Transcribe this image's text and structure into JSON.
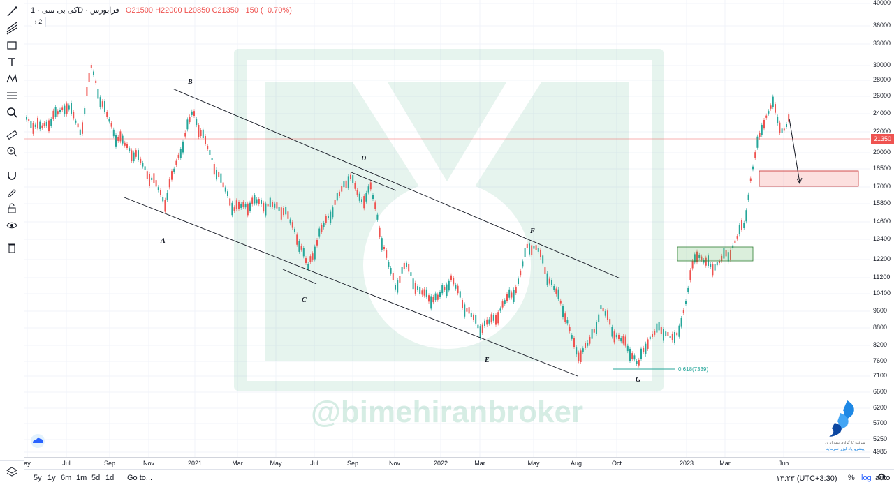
{
  "symbol": {
    "name": "قرابورس",
    "timeframe": "1D",
    "exchange": "کی بی سی",
    "open_label": "O",
    "open": "21500",
    "high_label": "H",
    "high": "22000",
    "low_label": "L",
    "low": "20850",
    "close_label": "C",
    "close": "21350",
    "change": "−150 (−0.70%)",
    "collapsed_count": "2"
  },
  "price_axis": {
    "ticks": [
      "40000",
      "36000",
      "33000",
      "30000",
      "28000",
      "26000",
      "24000",
      "22000",
      "20000",
      "18500",
      "17000",
      "15800",
      "14600",
      "13400",
      "12200",
      "11200",
      "10400",
      "9600",
      "8800",
      "8200",
      "7600",
      "7100",
      "6600",
      "6200",
      "5700",
      "5250",
      "4985"
    ],
    "current_price": "21350"
  },
  "time_axis": {
    "labels": [
      "ay",
      "Jul",
      "Sep",
      "Nov",
      "2021",
      "Mar",
      "May",
      "Jul",
      "Sep",
      "Nov",
      "2022",
      "Mar",
      "May",
      "Jun",
      "Aug",
      "Oct",
      "2023",
      "Mar",
      "Jun"
    ]
  },
  "annotations": {
    "points": [
      "A",
      "B",
      "C",
      "D",
      "E",
      "F",
      "G"
    ],
    "fib": "0.618(7339)"
  },
  "watermark": "@bimehiranbroker",
  "logo_text": "شرکت‌ کارگزاری بیمه ایران",
  "logo_subtext": "پیشرو یاد لیزر سرمایه",
  "bottombar": {
    "ranges": [
      "5y",
      "1y",
      "6m",
      "1m",
      "5d",
      "1d"
    ],
    "goto": "Go to...",
    "time": "۱۳:۲۳ (UTC+3:30)",
    "percent": "%",
    "log": "log",
    "auto": "auto"
  },
  "colors": {
    "up": "#26a69a",
    "down": "#ef5350",
    "accent": "#2962ff",
    "watermark": "#3aa77c"
  }
}
